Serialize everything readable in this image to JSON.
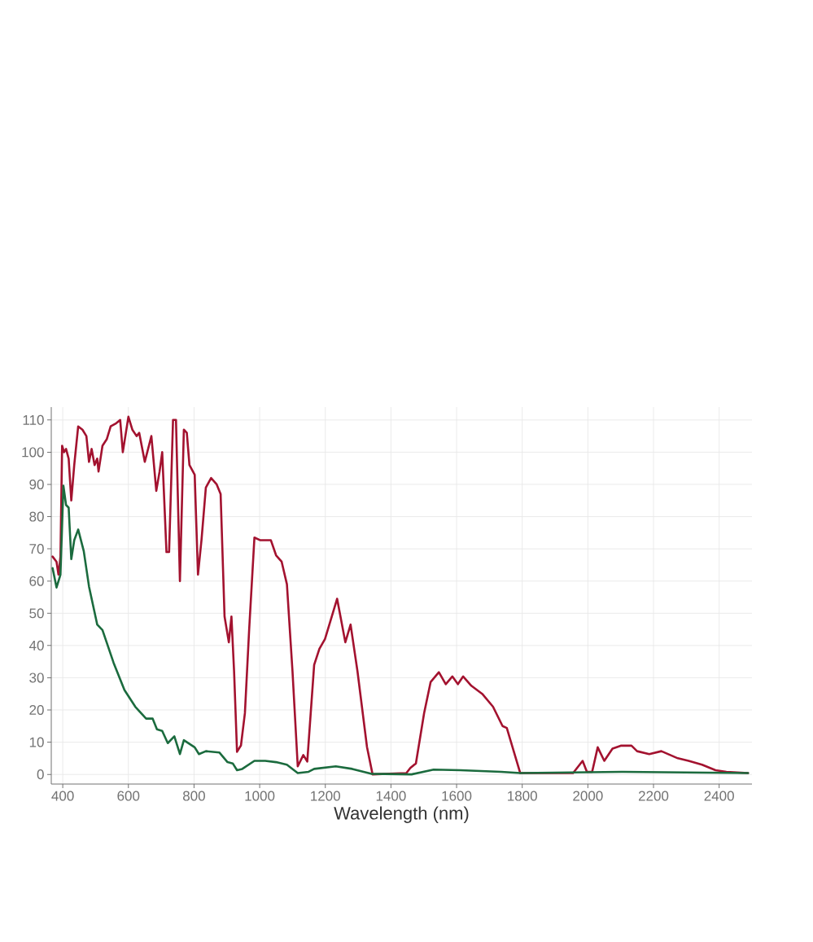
{
  "chart_data": {
    "type": "line",
    "xlabel": "Wavelength (nm)",
    "xlim": [
      365,
      2500
    ],
    "ylim": [
      -3,
      114
    ],
    "xticks": [
      400,
      600,
      800,
      1000,
      1200,
      1400,
      1600,
      1800,
      2000,
      2200,
      2400
    ],
    "yticks": [
      0,
      10,
      20,
      30,
      40,
      50,
      60,
      70,
      80,
      90,
      100,
      110
    ],
    "grid": true,
    "line_style": "solid",
    "series": [
      {
        "color": "#a3122f",
        "x": [
          369,
          381,
          387,
          393,
          398,
          404,
          410,
          418,
          426,
          435,
          447,
          460,
          472,
          480,
          488,
          497,
          505,
          509,
          521,
          534,
          546,
          563,
          575,
          583,
          600,
          612,
          625,
          633,
          650,
          670,
          685,
          695,
          703,
          716,
          724,
          736,
          745,
          757,
          769,
          778,
          786,
          802,
          812,
          823,
          836,
          852,
          869,
          881,
          893,
          906,
          914,
          922,
          931,
          943,
          955,
          968,
          984,
          1001,
          1034,
          1050,
          1067,
          1083,
          1100,
          1116,
          1133,
          1145,
          1166,
          1182,
          1199,
          1236,
          1261,
          1277,
          1298,
          1327,
          1344,
          1447,
          1459,
          1476,
          1501,
          1521,
          1546,
          1567,
          1587,
          1604,
          1620,
          1645,
          1678,
          1711,
          1740,
          1753,
          1794,
          1955,
          1984,
          1997,
          2013,
          2030,
          2050,
          2075,
          2100,
          2133,
          2150,
          2187,
          2224,
          2274,
          2307,
          2348,
          2389,
          2422,
          2488
        ],
        "values": [
          67.6,
          66,
          62,
          67.6,
          102,
          100,
          101,
          98,
          85,
          96,
          108,
          107,
          105,
          97,
          101,
          96,
          98,
          94,
          102,
          104,
          108,
          109,
          110,
          100,
          111,
          107,
          105,
          106,
          97,
          105,
          88,
          94,
          100,
          69,
          69,
          110,
          110,
          60,
          107,
          106,
          96,
          93,
          62,
          73,
          89,
          92,
          90,
          87,
          49,
          41,
          49,
          32,
          7,
          9,
          19,
          45,
          73.5,
          72.7,
          72.7,
          68,
          66,
          59,
          32,
          2.5,
          6,
          4,
          34,
          39,
          42,
          54.5,
          41,
          46.5,
          32,
          8.5,
          0,
          0.4,
          2,
          3.4,
          19,
          28.7,
          31.7,
          28,
          30.4,
          28,
          30.4,
          27.5,
          25,
          21,
          15,
          14.4,
          0.4,
          0.4,
          4.2,
          0.8,
          0.8,
          8.4,
          4.2,
          8,
          8.9,
          8.9,
          7.2,
          6.3,
          7.2,
          5,
          4.2,
          3,
          1.3,
          0.8,
          0.4
        ]
      },
      {
        "color": "#1b6b3e",
        "x": [
          369,
          381,
          393,
          402,
          410,
          418,
          426,
          435,
          447,
          464,
          480,
          505,
          521,
          555,
          588,
          621,
          654,
          674,
          687,
          703,
          720,
          740,
          757,
          769,
          802,
          815,
          836,
          877,
          902,
          918,
          931,
          947,
          984,
          1017,
          1050,
          1083,
          1116,
          1149,
          1166,
          1232,
          1282,
          1339,
          1463,
          1530,
          1612,
          1736,
          1794,
          2108,
          2488
        ],
        "values": [
          64,
          58,
          62,
          89.6,
          83.6,
          82.8,
          66.8,
          72.7,
          76,
          69.3,
          58.3,
          46.5,
          44.8,
          34.6,
          26.2,
          21,
          17.3,
          17.3,
          14,
          13.5,
          9.7,
          11.8,
          6.3,
          10.6,
          8.4,
          6.3,
          7.2,
          6.8,
          3.8,
          3.4,
          1.3,
          1.7,
          4.2,
          4.2,
          3.8,
          3,
          0.4,
          0.8,
          1.7,
          2.5,
          1.7,
          0.2,
          0,
          1.5,
          1.3,
          0.8,
          0.4,
          0.8,
          0.4
        ]
      }
    ]
  }
}
